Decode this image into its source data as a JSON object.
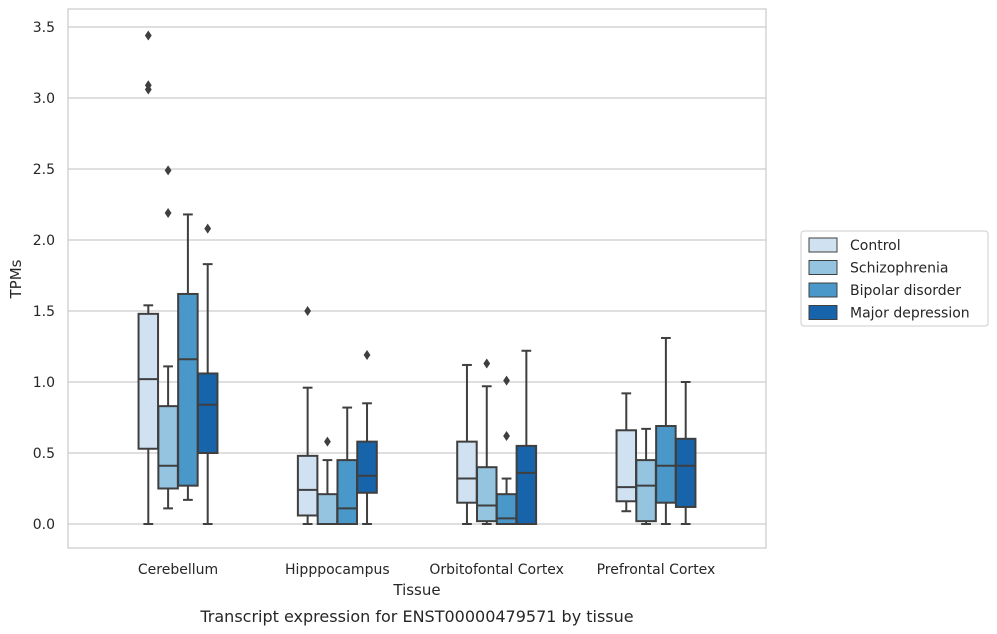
{
  "chart_data": {
    "type": "box",
    "title": "",
    "caption": "Transcript expression for ENST00000479571 by tissue",
    "xlabel": "Tissue",
    "ylabel": "TPMs",
    "ylim": [
      -0.17,
      3.62
    ],
    "yticks": [
      "0.0",
      "0.5",
      "1.0",
      "1.5",
      "2.0",
      "2.5",
      "3.0",
      "3.5"
    ],
    "grid": "horizontal",
    "legend_position": "right",
    "categories": [
      "Cerebellum",
      "Hipppocampus",
      "Orbitofontal Cortex",
      "Prefrontal Cortex"
    ],
    "series": [
      {
        "name": "Control",
        "color": "#d0e1f2",
        "boxes": [
          {
            "whislo": 0.0,
            "q1": 0.53,
            "med": 1.02,
            "q3": 1.48,
            "whishi": 1.54,
            "fliers": [
              3.44,
              3.09,
              3.06
            ]
          },
          {
            "whislo": 0.0,
            "q1": 0.06,
            "med": 0.24,
            "q3": 0.48,
            "whishi": 0.96,
            "fliers": [
              1.5
            ]
          },
          {
            "whislo": 0.0,
            "q1": 0.15,
            "med": 0.32,
            "q3": 0.58,
            "whishi": 1.12,
            "fliers": []
          },
          {
            "whislo": 0.09,
            "q1": 0.16,
            "med": 0.26,
            "q3": 0.66,
            "whishi": 0.92,
            "fliers": []
          }
        ]
      },
      {
        "name": "Schizophrenia",
        "color": "#94c4df",
        "boxes": [
          {
            "whislo": 0.11,
            "q1": 0.25,
            "med": 0.41,
            "q3": 0.83,
            "whishi": 1.11,
            "fliers": [
              2.49,
              2.19
            ]
          },
          {
            "whislo": 0.0,
            "q1": 0.0,
            "med": 0.0,
            "q3": 0.21,
            "whishi": 0.45,
            "fliers": [
              0.58
            ]
          },
          {
            "whislo": 0.0,
            "q1": 0.02,
            "med": 0.13,
            "q3": 0.4,
            "whishi": 0.97,
            "fliers": [
              1.13
            ]
          },
          {
            "whislo": 0.0,
            "q1": 0.02,
            "med": 0.27,
            "q3": 0.45,
            "whishi": 0.67,
            "fliers": []
          }
        ]
      },
      {
        "name": "Bipolar disorder",
        "color": "#4a98c9",
        "boxes": [
          {
            "whislo": 0.17,
            "q1": 0.27,
            "med": 1.16,
            "q3": 1.62,
            "whishi": 2.18,
            "fliers": []
          },
          {
            "whislo": 0.0,
            "q1": 0.0,
            "med": 0.11,
            "q3": 0.45,
            "whishi": 0.82,
            "fliers": []
          },
          {
            "whislo": 0.0,
            "q1": 0.0,
            "med": 0.04,
            "q3": 0.21,
            "whishi": 0.32,
            "fliers": [
              1.01,
              0.62
            ]
          },
          {
            "whislo": 0.0,
            "q1": 0.15,
            "med": 0.41,
            "q3": 0.69,
            "whishi": 1.31,
            "fliers": []
          }
        ]
      },
      {
        "name": "Major depression",
        "color": "#1764ab",
        "boxes": [
          {
            "whislo": 0.0,
            "q1": 0.5,
            "med": 0.84,
            "q3": 1.06,
            "whishi": 1.83,
            "fliers": [
              2.08
            ]
          },
          {
            "whislo": 0.0,
            "q1": 0.22,
            "med": 0.34,
            "q3": 0.58,
            "whishi": 0.85,
            "fliers": [
              1.19
            ]
          },
          {
            "whislo": 0.0,
            "q1": 0.0,
            "med": 0.36,
            "q3": 0.55,
            "whishi": 1.22,
            "fliers": []
          },
          {
            "whislo": 0.0,
            "q1": 0.12,
            "med": 0.41,
            "q3": 0.6,
            "whishi": 1.0,
            "fliers": []
          }
        ]
      }
    ]
  }
}
